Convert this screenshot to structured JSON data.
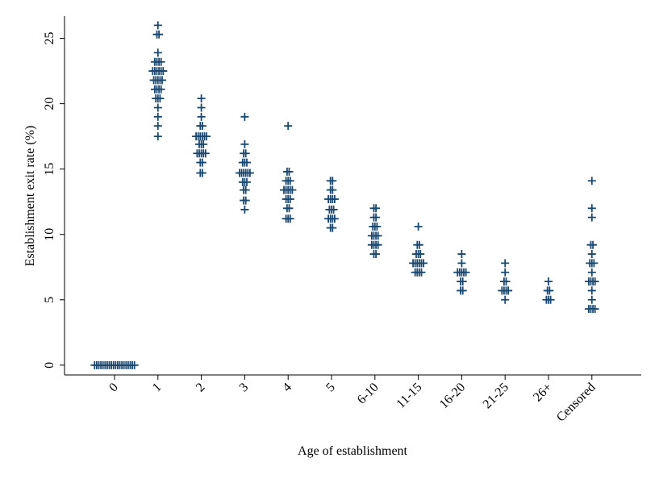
{
  "chart_data": {
    "type": "strip",
    "xlabel": "Age of establishment",
    "ylabel": "Establishment exit rate (%)",
    "categories": [
      "0",
      "1",
      "2",
      "3",
      "4",
      "5",
      "6-10",
      "11-15",
      "16-20",
      "21-25",
      "26+",
      "Censored"
    ],
    "values": [
      [
        0,
        0,
        0,
        0,
        0,
        0,
        0,
        0,
        0,
        0,
        0,
        0,
        0,
        0,
        0,
        0,
        0,
        0,
        0,
        0
      ],
      [
        26,
        25.3,
        25.3,
        23.9,
        23.2,
        23.2,
        23.2,
        23.2,
        22.5,
        22.5,
        22.5,
        22.5,
        22.5,
        22.5,
        21.8,
        21.8,
        21.8,
        21.8,
        21.8,
        21.1,
        21.1,
        21.1,
        21.1,
        20.4,
        20.4,
        20.4,
        19.7,
        19,
        18.3,
        17.5
      ],
      [
        20.4,
        19.7,
        19,
        18.3,
        18.3,
        17.5,
        17.5,
        17.5,
        17.5,
        17.5,
        17.5,
        16.9,
        16.9,
        16.9,
        16.2,
        16.2,
        16.2,
        16.2,
        16.2,
        15.5,
        15.5,
        14.7,
        14.7
      ],
      [
        19,
        16.9,
        16.2,
        16.2,
        15.5,
        15.5,
        15.5,
        14.7,
        14.7,
        14.7,
        14.7,
        14.7,
        14.7,
        14,
        14,
        14,
        13.4,
        13.4,
        12.6,
        12.6,
        11.9
      ],
      [
        18.3,
        14.8,
        14.8,
        14.1,
        14.1,
        14.1,
        13.4,
        13.4,
        13.4,
        13.4,
        13.4,
        12.7,
        12.7,
        12.7,
        12,
        12,
        11.2,
        11.2,
        11.2
      ],
      [
        14.1,
        14.1,
        13.4,
        13.4,
        12.7,
        12.7,
        12.7,
        12.7,
        11.9,
        11.9,
        11.9,
        11.2,
        11.2,
        11.2,
        11.2,
        10.5,
        10.5
      ],
      [
        12,
        12,
        11.3,
        11.3,
        10.6,
        10.6,
        10.6,
        9.9,
        9.9,
        9.9,
        9.9,
        9.2,
        9.2,
        9.2,
        9.2,
        8.5,
        8.5
      ],
      [
        10.6,
        9.2,
        9.2,
        8.5,
        8.5,
        8.5,
        7.8,
        7.8,
        7.8,
        7.8,
        7.8,
        7.8,
        7.1,
        7.1,
        7.1,
        7.1
      ],
      [
        8.5,
        7.8,
        7.1,
        7.1,
        7.1,
        7.1,
        7.1,
        6.4,
        6.4,
        5.7,
        5.7
      ],
      [
        7.8,
        7.1,
        6.4,
        6.4,
        5.7,
        5.7,
        5.7,
        5.7,
        5
      ],
      [
        6.4,
        5.7,
        5.7,
        5,
        5,
        5
      ],
      [
        14.1,
        12,
        11.3,
        9.2,
        9.2,
        8.5,
        7.8,
        7.8,
        7.8,
        7.1,
        6.4,
        6.4,
        6.4,
        6.4,
        5.7,
        5,
        4.3,
        4.3,
        4.3,
        4.3
      ]
    ],
    "color": "#1a476f",
    "ylim": [
      -0.75,
      26.7
    ],
    "yticks": [
      0,
      5,
      10,
      15,
      20,
      25
    ]
  }
}
